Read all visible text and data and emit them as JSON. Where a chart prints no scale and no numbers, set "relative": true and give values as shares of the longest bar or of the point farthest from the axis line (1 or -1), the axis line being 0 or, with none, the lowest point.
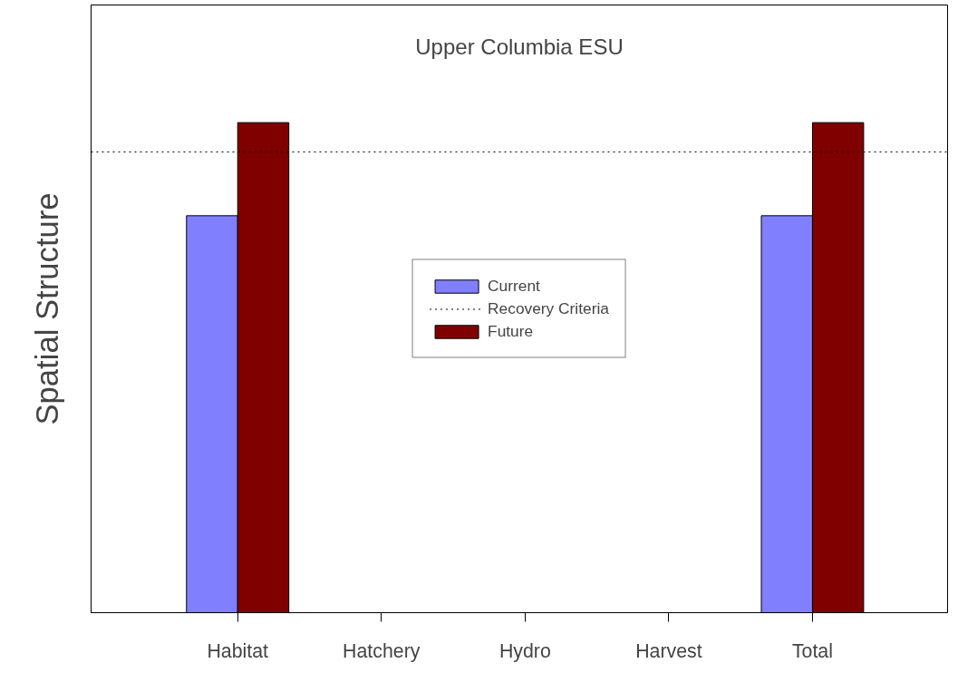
{
  "chart_data": {
    "type": "bar",
    "title": "Upper Columbia ESU",
    "ylabel": "Spatial Structure",
    "relative": true,
    "categories": [
      "Habitat",
      "Hatchery",
      "Hydro",
      "Harvest",
      "Total"
    ],
    "series": [
      {
        "name": "Current",
        "color": "#8080ff",
        "values": [
          0.81,
          null,
          null,
          null,
          0.81
        ]
      },
      {
        "name": "Future",
        "color": "#800000",
        "values": [
          1,
          null,
          null,
          null,
          1
        ]
      }
    ],
    "ref_lines": [
      {
        "axis": "y",
        "value": 0.94,
        "label": "Recovery Criteria",
        "color": "#000000",
        "line_style": "dotted"
      }
    ],
    "legend": "center",
    "grid": false
  }
}
